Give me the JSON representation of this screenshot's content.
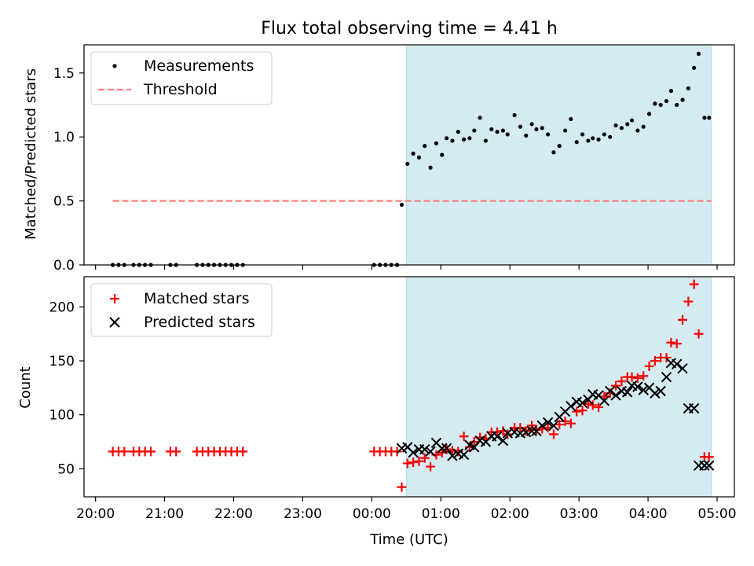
{
  "figure": {
    "title": "Flux total observing time = 4.41 h"
  },
  "chart_data": [
    {
      "type": "scatter",
      "title": "Flux total observing time = 4.41 h",
      "xlabel": "",
      "ylabel": "Matched/Predicted stars",
      "xlim": [
        "19:50",
        "05:15"
      ],
      "ylim": [
        0,
        1.72
      ],
      "yticks": [
        0.0,
        0.5,
        1.0,
        1.5
      ],
      "ytick_labels": [
        "0.0",
        "0.5",
        "1.0",
        "1.5"
      ],
      "legend_position": "upper-left",
      "shaded_span": {
        "start": "00:30",
        "end": "04:55",
        "color": "#add8e6"
      },
      "series": [
        {
          "name": "Measurements",
          "marker": "dot",
          "color": "#000000",
          "x": [
            "20:15",
            "20:20",
            "20:25",
            "20:33",
            "20:38",
            "20:43",
            "20:48",
            "21:05",
            "21:10",
            "21:28",
            "21:33",
            "21:38",
            "21:43",
            "21:48",
            "21:53",
            "21:58",
            "22:03",
            "22:08",
            "00:02",
            "00:07",
            "00:12",
            "00:17",
            "00:22",
            "00:26",
            "00:31",
            "00:36",
            "00:41",
            "00:46",
            "00:51",
            "00:56",
            "01:01",
            "01:05",
            "01:10",
            "01:15",
            "01:20",
            "01:25",
            "01:29",
            "01:34",
            "01:39",
            "01:44",
            "01:49",
            "01:54",
            "01:58",
            "02:04",
            "02:09",
            "02:14",
            "02:19",
            "02:23",
            "02:28",
            "02:33",
            "02:38",
            "02:43",
            "02:48",
            "02:53",
            "02:58",
            "03:03",
            "03:08",
            "03:12",
            "03:17",
            "03:22",
            "03:27",
            "03:32",
            "03:37",
            "03:42",
            "03:46",
            "03:51",
            "03:56",
            "04:01",
            "04:06",
            "04:11",
            "04:16",
            "04:20",
            "04:25",
            "04:30",
            "04:35",
            "04:40",
            "04:44",
            "04:49",
            "04:53"
          ],
          "y": [
            0,
            0,
            0,
            0,
            0,
            0,
            0,
            0,
            0,
            0,
            0,
            0,
            0,
            0,
            0,
            0,
            0,
            0,
            0,
            0,
            0,
            0,
            0,
            0.47,
            0.79,
            0.87,
            0.84,
            0.93,
            0.76,
            0.95,
            0.86,
            0.99,
            0.97,
            1.04,
            0.98,
            0.99,
            1.05,
            1.15,
            0.97,
            1.06,
            1.04,
            1.05,
            1.02,
            1.17,
            1.08,
            1.01,
            1.1,
            1.06,
            1.07,
            1.02,
            0.88,
            0.93,
            1.05,
            1.14,
            0.96,
            1.02,
            0.97,
            0.99,
            0.98,
            1.02,
            1.0,
            1.09,
            1.07,
            1.1,
            1.13,
            1.05,
            1.08,
            1.18,
            1.26,
            1.25,
            1.28,
            1.36,
            1.25,
            1.29,
            1.38,
            1.54,
            1.65,
            1.15,
            1.15
          ]
        },
        {
          "name": "Threshold",
          "style": "dashed-line",
          "color": "#ff7f7f",
          "x": [
            "20:15",
            "04:55"
          ],
          "y": [
            0.5,
            0.5
          ]
        }
      ]
    },
    {
      "type": "scatter",
      "xlabel": "Time (UTC)",
      "ylabel": "Count",
      "xlim": [
        "19:50",
        "05:15"
      ],
      "ylim": [
        24,
        228
      ],
      "yticks": [
        50,
        100,
        150,
        200
      ],
      "ytick_labels": [
        "50",
        "100",
        "150",
        "200"
      ],
      "xticks": [
        "20:00",
        "21:00",
        "22:00",
        "23:00",
        "00:00",
        "01:00",
        "02:00",
        "03:00",
        "04:00",
        "05:00"
      ],
      "xtick_labels": [
        "20:00",
        "21:00",
        "22:00",
        "23:00",
        "00:00",
        "01:00",
        "02:00",
        "03:00",
        "04:00",
        "05:00"
      ],
      "legend_position": "upper-left",
      "shaded_span": {
        "start": "00:30",
        "end": "04:55",
        "color": "#add8e6"
      },
      "series": [
        {
          "name": "Matched stars",
          "marker": "plus",
          "color": "#ff0000",
          "x": [
            "20:15",
            "20:20",
            "20:25",
            "20:33",
            "20:38",
            "20:43",
            "20:48",
            "21:05",
            "21:10",
            "21:28",
            "21:33",
            "21:38",
            "21:43",
            "21:48",
            "21:53",
            "21:58",
            "22:03",
            "22:08",
            "00:02",
            "00:07",
            "00:12",
            "00:17",
            "00:22",
            "00:26",
            "00:31",
            "00:36",
            "00:41",
            "00:46",
            "00:51",
            "00:56",
            "01:01",
            "01:05",
            "01:10",
            "01:15",
            "01:20",
            "01:25",
            "01:29",
            "01:34",
            "01:39",
            "01:44",
            "01:49",
            "01:54",
            "01:58",
            "02:04",
            "02:09",
            "02:14",
            "02:19",
            "02:23",
            "02:28",
            "02:33",
            "02:38",
            "02:43",
            "02:48",
            "02:53",
            "02:58",
            "03:03",
            "03:08",
            "03:12",
            "03:17",
            "03:22",
            "03:27",
            "03:32",
            "03:37",
            "03:42",
            "03:46",
            "03:51",
            "03:56",
            "04:01",
            "04:06",
            "04:11",
            "04:16",
            "04:20",
            "04:25",
            "04:30",
            "04:35",
            "04:40",
            "04:44",
            "04:49",
            "04:53"
          ],
          "y": [
            66,
            66,
            66,
            66,
            66,
            66,
            66,
            66,
            66,
            66,
            66,
            66,
            66,
            66,
            66,
            66,
            66,
            66,
            66,
            66,
            66,
            66,
            66,
            33,
            55,
            56,
            57,
            60,
            52,
            63,
            65,
            68,
            67,
            66,
            80,
            70,
            75,
            79,
            78,
            84,
            84,
            85,
            82,
            88,
            88,
            85,
            90,
            86,
            87,
            88,
            82,
            91,
            94,
            92,
            103,
            104,
            110,
            109,
            107,
            117,
            120,
            127,
            131,
            135,
            135,
            134,
            136,
            145,
            150,
            153,
            153,
            167,
            166,
            188,
            205,
            221,
            175,
            61,
            61
          ]
        },
        {
          "name": "Predicted stars",
          "marker": "x",
          "color": "#000000",
          "x": [
            "00:26",
            "00:31",
            "00:36",
            "00:41",
            "00:46",
            "00:51",
            "00:56",
            "01:01",
            "01:05",
            "01:10",
            "01:15",
            "01:20",
            "01:25",
            "01:29",
            "01:34",
            "01:39",
            "01:44",
            "01:49",
            "01:54",
            "01:58",
            "02:04",
            "02:09",
            "02:14",
            "02:19",
            "02:23",
            "02:28",
            "02:33",
            "02:38",
            "02:43",
            "02:48",
            "02:53",
            "02:58",
            "03:03",
            "03:08",
            "03:12",
            "03:17",
            "03:22",
            "03:27",
            "03:32",
            "03:37",
            "03:42",
            "03:46",
            "03:51",
            "03:56",
            "04:01",
            "04:06",
            "04:11",
            "04:16",
            "04:20",
            "04:25",
            "04:30",
            "04:35",
            "04:40",
            "04:44",
            "04:49",
            "04:53"
          ],
          "y": [
            69,
            70,
            65,
            68,
            68,
            66,
            74,
            69,
            69,
            62,
            64,
            63,
            72,
            70,
            76,
            75,
            80,
            80,
            76,
            83,
            84,
            83,
            84,
            85,
            85,
            90,
            93,
            90,
            98,
            103,
            108,
            112,
            111,
            114,
            119,
            118,
            113,
            122,
            118,
            122,
            121,
            127,
            126,
            123,
            125,
            120,
            122,
            135,
            148,
            147,
            143,
            106,
            106,
            53,
            53,
            53
          ]
        }
      ]
    }
  ]
}
